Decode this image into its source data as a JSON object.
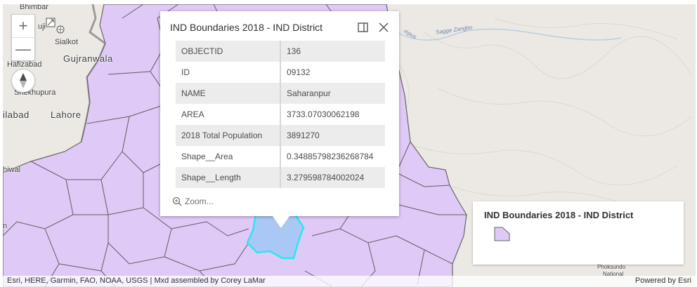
{
  "map": {
    "place_labels": [
      {
        "id": "bhimbar",
        "text": "Bhimbar"
      },
      {
        "id": "uji",
        "text": "uji"
      },
      {
        "id": "sialkot",
        "text": "Sialkot"
      },
      {
        "id": "gujranwala",
        "text": "Gujranwala"
      },
      {
        "id": "hafizabad",
        "text": "Hafizabad"
      },
      {
        "id": "shekhupura",
        "text": "Shekhupura"
      },
      {
        "id": "ilabad",
        "text": "ilabad"
      },
      {
        "id": "lahore",
        "text": "Lahore"
      },
      {
        "id": "hiwal",
        "text": "hiwal"
      },
      {
        "id": "n",
        "text": "n"
      },
      {
        "id": "sagge-zangbo",
        "text": "Sagge Zangbo"
      },
      {
        "id": "mpus",
        "text": "mpus"
      },
      {
        "id": "phoksundo",
        "text": "Phoksundo"
      },
      {
        "id": "national",
        "text": "National"
      }
    ],
    "colors": {
      "district_fill": "#dfc9f7",
      "district_stroke": "#5a5a5a",
      "selected_fill": "#a9c8f5",
      "selected_stroke": "#2ee6f0",
      "base_land": "#ece9e4"
    }
  },
  "controls": {
    "zoom_in_icon": "+",
    "zoom_out_icon": "—"
  },
  "popup": {
    "title": "IND Boundaries 2018 - IND District",
    "fields": [
      {
        "key": "OBJECTID",
        "value": "136"
      },
      {
        "key": "ID",
        "value": "09132"
      },
      {
        "key": "NAME",
        "value": "Saharanpur"
      },
      {
        "key": "AREA",
        "value": "3733.07030062198"
      },
      {
        "key": "2018 Total Population",
        "value": "3891270"
      },
      {
        "key": "Shape__Area",
        "value": "0.34885798236268784"
      },
      {
        "key": "Shape__Length",
        "value": "3.279598784002024"
      }
    ],
    "zoom_label": "Zoom..."
  },
  "legend": {
    "title": "IND Boundaries 2018 - IND District"
  },
  "attribution": {
    "credits": "Esri, HERE, Garmin, FAO, NOAA, USGS | Mxd assembled by Corey LaMar",
    "powered_by": "Powered by Esri"
  }
}
